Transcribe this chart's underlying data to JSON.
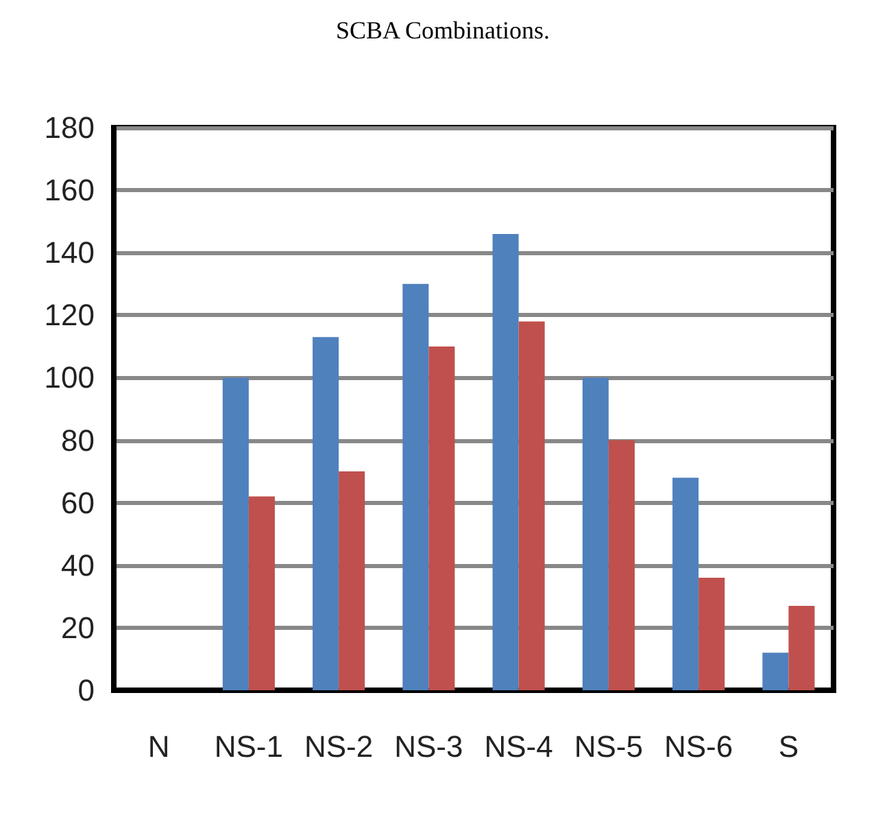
{
  "chart_data": {
    "type": "bar",
    "title": "SCBA Combinations.",
    "categories": [
      "N",
      "NS-1",
      "NS-2",
      "NS-3",
      "NS-4",
      "NS-5",
      "NS-6",
      "S"
    ],
    "series": [
      {
        "color": "#4f81bd",
        "values": [
          null,
          100,
          113,
          130,
          146,
          100,
          68,
          12
        ]
      },
      {
        "color": "#c0504d",
        "values": [
          null,
          62,
          70,
          110,
          118,
          80,
          36,
          27
        ]
      }
    ],
    "ylim": [
      0,
      180
    ],
    "yticks": [
      0,
      20,
      40,
      60,
      80,
      100,
      120,
      140,
      160,
      180
    ],
    "grid": "y"
  }
}
